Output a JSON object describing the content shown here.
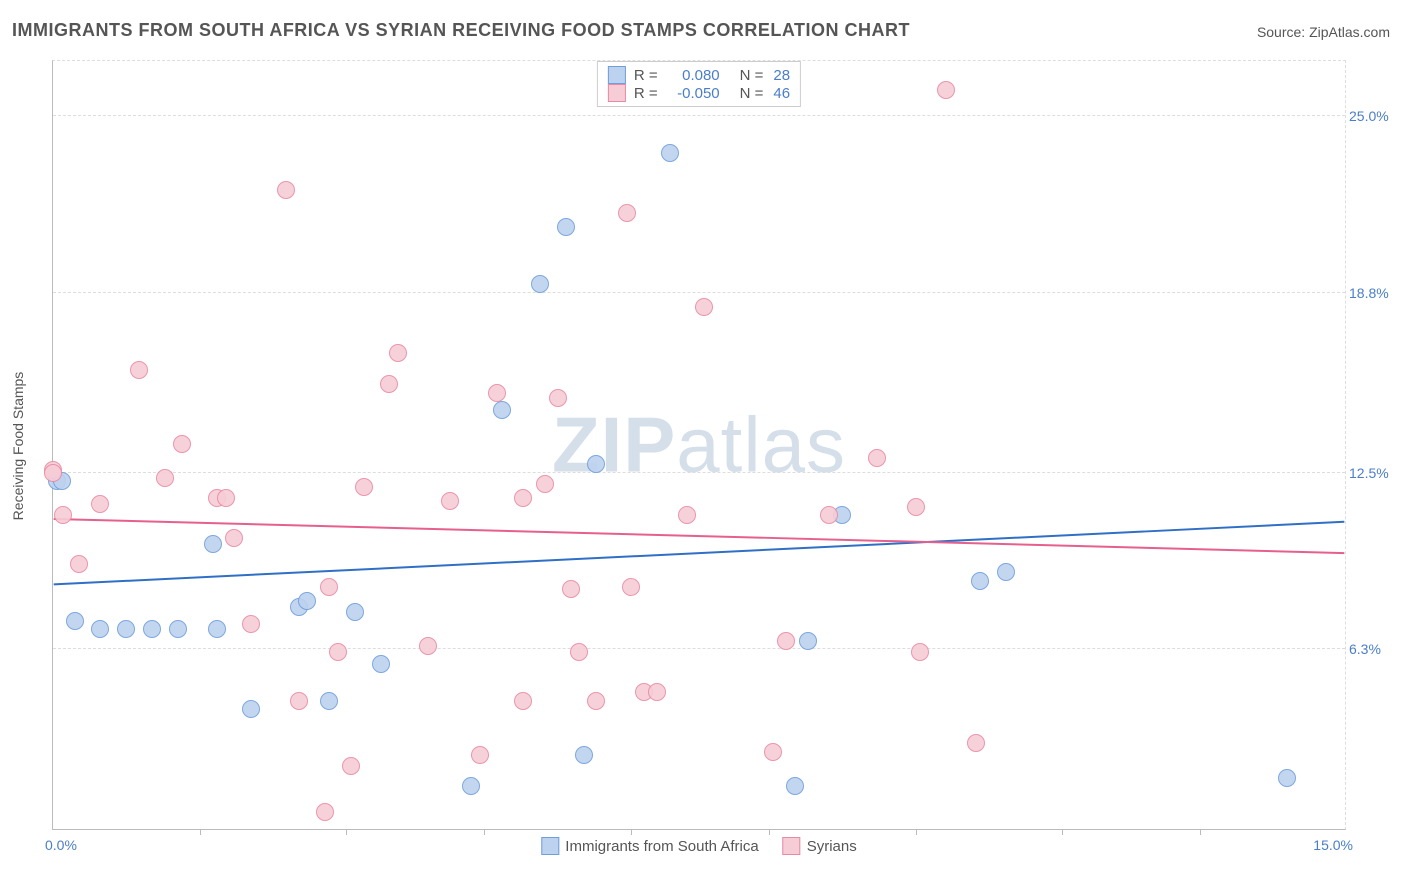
{
  "title": "IMMIGRANTS FROM SOUTH AFRICA VS SYRIAN RECEIVING FOOD STAMPS CORRELATION CHART",
  "source": "Source: ZipAtlas.com",
  "watermark": {
    "z": "ZIP",
    "rest": "atlas"
  },
  "yaxis_label": "Receiving Food Stamps",
  "chart": {
    "type": "scatter",
    "xlim": [
      0,
      15
    ],
    "ylim": [
      0,
      27
    ],
    "x_ticks_at": [
      1.7,
      3.4,
      5.0,
      6.7,
      8.3,
      10.0,
      11.7,
      13.3
    ],
    "x_left_label": "0.0%",
    "x_right_label": "15.0%",
    "y_gridlines": [
      {
        "v": 6.3,
        "label": "6.3%"
      },
      {
        "v": 12.5,
        "label": "12.5%"
      },
      {
        "v": 18.8,
        "label": "18.8%"
      },
      {
        "v": 25.0,
        "label": "25.0%"
      }
    ],
    "background_color": "#ffffff",
    "grid_color": "#dddddd",
    "axis_color": "#bbbbbb",
    "tick_label_color": "#4a7ec9",
    "point_radius": 9,
    "point_border_width": 1
  },
  "series": {
    "a": {
      "label": "Immigrants from South Africa",
      "fill": "#bdd2ef",
      "stroke": "#6f9edc",
      "line_color": "#2f6fc6",
      "R": "0.080",
      "N": "28",
      "trend": {
        "y_at_x0": 8.6,
        "y_at_x15": 10.8
      },
      "points": [
        [
          0.05,
          12.2
        ],
        [
          0.1,
          12.2
        ],
        [
          0.25,
          7.3
        ],
        [
          0.55,
          7.0
        ],
        [
          0.85,
          7.0
        ],
        [
          1.15,
          7.0
        ],
        [
          1.45,
          7.0
        ],
        [
          1.85,
          10.0
        ],
        [
          1.9,
          7.0
        ],
        [
          2.3,
          4.2
        ],
        [
          2.85,
          7.8
        ],
        [
          2.95,
          8.0
        ],
        [
          3.2,
          4.5
        ],
        [
          3.5,
          7.6
        ],
        [
          3.8,
          5.8
        ],
        [
          4.85,
          1.5
        ],
        [
          5.2,
          14.7
        ],
        [
          5.65,
          19.1
        ],
        [
          5.95,
          21.1
        ],
        [
          6.15,
          2.6
        ],
        [
          6.3,
          12.8
        ],
        [
          7.15,
          23.7
        ],
        [
          8.6,
          1.5
        ],
        [
          8.75,
          6.6
        ],
        [
          9.15,
          11.0
        ],
        [
          10.75,
          8.7
        ],
        [
          11.05,
          9.0
        ],
        [
          14.3,
          1.8
        ]
      ]
    },
    "b": {
      "label": "Syrians",
      "fill": "#f6cdd7",
      "stroke": "#e98aa4",
      "line_color": "#e65f8d",
      "R": "-0.050",
      "N": "46",
      "trend": {
        "y_at_x0": 10.9,
        "y_at_x15": 9.7
      },
      "points": [
        [
          0.0,
          12.6
        ],
        [
          0.0,
          12.5
        ],
        [
          0.12,
          11.0
        ],
        [
          0.3,
          9.3
        ],
        [
          0.55,
          11.4
        ],
        [
          1.0,
          16.1
        ],
        [
          1.3,
          12.3
        ],
        [
          1.5,
          13.5
        ],
        [
          1.9,
          11.6
        ],
        [
          2.0,
          11.6
        ],
        [
          2.1,
          10.2
        ],
        [
          2.3,
          7.2
        ],
        [
          2.7,
          22.4
        ],
        [
          2.85,
          4.5
        ],
        [
          3.15,
          0.6
        ],
        [
          3.2,
          8.5
        ],
        [
          3.3,
          6.2
        ],
        [
          3.45,
          2.2
        ],
        [
          3.6,
          12.0
        ],
        [
          3.9,
          15.6
        ],
        [
          4.0,
          16.7
        ],
        [
          4.35,
          6.4
        ],
        [
          4.6,
          11.5
        ],
        [
          4.95,
          2.6
        ],
        [
          5.15,
          15.3
        ],
        [
          5.45,
          11.6
        ],
        [
          5.45,
          4.5
        ],
        [
          5.7,
          12.1
        ],
        [
          5.85,
          15.1
        ],
        [
          6.0,
          8.4
        ],
        [
          6.1,
          6.2
        ],
        [
          6.3,
          4.5
        ],
        [
          6.65,
          21.6
        ],
        [
          6.7,
          8.5
        ],
        [
          6.85,
          4.8
        ],
        [
          7.0,
          4.8
        ],
        [
          7.35,
          11.0
        ],
        [
          7.55,
          18.3
        ],
        [
          8.35,
          2.7
        ],
        [
          8.5,
          6.6
        ],
        [
          9.0,
          11.0
        ],
        [
          9.55,
          13.0
        ],
        [
          10.0,
          11.3
        ],
        [
          10.05,
          6.2
        ],
        [
          10.35,
          25.9
        ],
        [
          10.7,
          3.0
        ]
      ]
    }
  },
  "stats_legend_labels": {
    "r": "R =",
    "n": "N ="
  },
  "legend_order": [
    "a",
    "b"
  ]
}
